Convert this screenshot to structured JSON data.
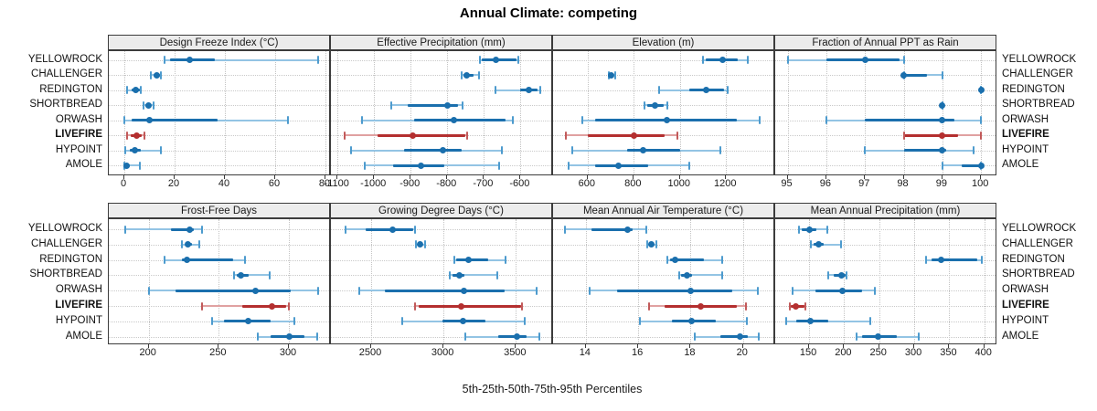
{
  "title": "Annual Climate: competing",
  "caption": "5th-25th-50th-75th-95th Percentiles",
  "colors": {
    "blue": "#1a6fad",
    "blue_light": "#93c4e4",
    "blue_cap": "#4d9bce",
    "red": "#b42f2f",
    "red_light": "#e0a1a1",
    "red_cap": "#c25a5a",
    "strip_bg": "#ececec",
    "grid": "#c3c3c3"
  },
  "chart_data": {
    "type": "dotplot-intervals",
    "percentile_labels": [
      "5th",
      "25th",
      "50th",
      "75th",
      "95th"
    ],
    "sites": [
      "YELLOWROCK",
      "CHALLENGER",
      "REDINGTON",
      "SHORTBREAD",
      "ORWASH",
      "LIVEFIRE",
      "HYPOINT",
      "AMOLE"
    ],
    "highlight_site": "LIVEFIRE",
    "panel_grid": {
      "rows": 2,
      "cols": 4
    },
    "panels": [
      {
        "title": "Design Freeze Index (°C)",
        "grid_row": 0,
        "axis_ticks": [
          0,
          20,
          40,
          60,
          80
        ],
        "axis_range": [
          -6.2,
          82.2
        ],
        "values": [
          [
            16,
            18,
            26,
            36,
            77
          ],
          [
            10.5,
            11.5,
            13,
            14,
            14.5
          ],
          [
            1,
            3,
            4.5,
            6,
            6.5
          ],
          [
            7.5,
            8.5,
            9.5,
            10.5,
            11.5
          ],
          [
            0,
            3,
            10,
            37,
            65
          ],
          [
            1,
            2.5,
            5,
            7,
            8
          ],
          [
            0.5,
            2,
            4,
            6.5,
            14.5
          ],
          [
            0,
            0.5,
            1,
            2,
            6
          ]
        ]
      },
      {
        "title": "Effective Precipitation (mm)",
        "grid_row": 0,
        "axis_ticks": [
          -1100,
          -1000,
          -900,
          -800,
          -700,
          -600
        ],
        "axis_range": [
          -1118,
          -511
        ],
        "values": [
          [
            -712,
            -705,
            -668,
            -612,
            -606
          ],
          [
            -762,
            -756,
            -748,
            -728,
            -714
          ],
          [
            -668,
            -600,
            -577,
            -553,
            -546
          ],
          [
            -954,
            -908,
            -800,
            -770,
            -758
          ],
          [
            -1033,
            -890,
            -783,
            -640,
            -620
          ],
          [
            -1080,
            -990,
            -895,
            -752,
            -745
          ],
          [
            -1062,
            -917,
            -812,
            -762,
            -652
          ],
          [
            -1026,
            -948,
            -871,
            -808,
            -658
          ]
        ]
      },
      {
        "title": "Elevation (m)",
        "grid_row": 0,
        "axis_ticks": [
          600,
          800,
          1000,
          1200
        ],
        "axis_range": [
          450,
          1413
        ],
        "values": [
          [
            1100,
            1112,
            1185,
            1250,
            1295
          ],
          [
            692,
            697,
            703,
            712,
            719
          ],
          [
            910,
            1042,
            1115,
            1193,
            1205
          ],
          [
            848,
            858,
            890,
            930,
            947
          ],
          [
            578,
            633,
            945,
            1245,
            1345
          ],
          [
            505,
            600,
            800,
            935,
            990
          ],
          [
            535,
            770,
            841,
            1002,
            1176
          ],
          [
            517,
            633,
            732,
            864,
            1040
          ]
        ]
      },
      {
        "title": "Fraction of Annual PPT as Rain",
        "grid_row": 0,
        "axis_ticks": [
          95,
          96,
          97,
          98,
          99,
          100
        ],
        "axis_range": [
          94.68,
          100.42
        ],
        "values": [
          [
            95,
            96,
            97,
            97.9,
            98
          ],
          [
            98,
            98,
            98,
            98.6,
            99
          ],
          [
            100,
            100,
            100,
            100,
            100
          ],
          [
            99,
            99,
            99,
            99,
            99
          ],
          [
            96,
            97,
            99,
            99.3,
            100
          ],
          [
            98,
            98,
            99,
            99.4,
            100
          ],
          [
            97,
            98,
            99,
            99.1,
            99.8
          ],
          [
            99,
            99.5,
            100,
            100,
            100
          ]
        ]
      },
      {
        "title": "Frost-Free Days",
        "grid_row": 1,
        "axis_ticks": [
          200,
          250,
          300
        ],
        "axis_range": [
          171.5,
          330
        ],
        "values": [
          [
            183,
            216,
            229,
            232,
            238
          ],
          [
            224,
            226,
            228,
            231,
            236
          ],
          [
            211,
            224,
            227,
            260,
            269
          ],
          [
            261,
            263,
            266,
            271,
            286
          ],
          [
            200,
            219,
            276,
            301,
            321
          ],
          [
            238,
            267,
            288,
            298,
            300
          ],
          [
            245,
            254,
            271,
            287,
            304
          ],
          [
            278,
            287,
            300,
            311,
            320
          ]
        ]
      },
      {
        "title": "Growing Degree Days (°C)",
        "grid_row": 1,
        "axis_ticks": [
          2500,
          3000,
          3500
        ],
        "axis_range": [
          2222,
          3757
        ],
        "values": [
          [
            2320,
            2460,
            2650,
            2790,
            2800
          ],
          [
            2810,
            2825,
            2835,
            2855,
            2875
          ],
          [
            3075,
            3090,
            3175,
            3310,
            3430
          ],
          [
            3045,
            3060,
            3110,
            3145,
            3370
          ],
          [
            2415,
            2595,
            3140,
            3425,
            3645
          ],
          [
            2805,
            2830,
            3125,
            3535,
            3545
          ],
          [
            2715,
            2995,
            3135,
            3290,
            3560
          ],
          [
            3150,
            3375,
            3505,
            3575,
            3660
          ]
        ]
      },
      {
        "title": "Mean Annual Air Temperature (°C)",
        "grid_row": 1,
        "axis_ticks": [
          14,
          16,
          18,
          20
        ],
        "axis_range": [
          12.75,
          21.23
        ],
        "values": [
          [
            13.2,
            14.2,
            15.6,
            15.8,
            16.3
          ],
          [
            16.35,
            16.45,
            16.5,
            16.6,
            16.7
          ],
          [
            17.1,
            17.2,
            17.4,
            18.5,
            19.2
          ],
          [
            17.55,
            17.65,
            17.85,
            18.05,
            19.2
          ],
          [
            14.15,
            15.2,
            18.0,
            19.6,
            20.55
          ],
          [
            16.4,
            17.0,
            18.4,
            19.75,
            20.1
          ],
          [
            16.05,
            17.3,
            18.05,
            18.95,
            20.15
          ],
          [
            18.15,
            19.15,
            19.9,
            20.2,
            20.6
          ]
        ]
      },
      {
        "title": "Mean Annual Precipitation (mm)",
        "grid_row": 1,
        "axis_ticks": [
          150,
          200,
          250,
          300,
          350,
          400
        ],
        "axis_range": [
          101.7,
          418.6
        ],
        "values": [
          [
            135,
            140,
            150,
            161,
            176
          ],
          [
            152,
            156,
            163,
            171,
            195
          ],
          [
            317,
            325,
            338,
            390,
            396
          ],
          [
            177,
            185,
            196,
            202,
            204
          ],
          [
            127,
            159,
            197,
            225,
            244
          ],
          [
            122,
            124,
            131,
            144,
            145
          ],
          [
            118,
            132,
            152,
            178,
            237
          ],
          [
            218,
            226,
            249,
            275,
            306
          ]
        ]
      }
    ]
  }
}
